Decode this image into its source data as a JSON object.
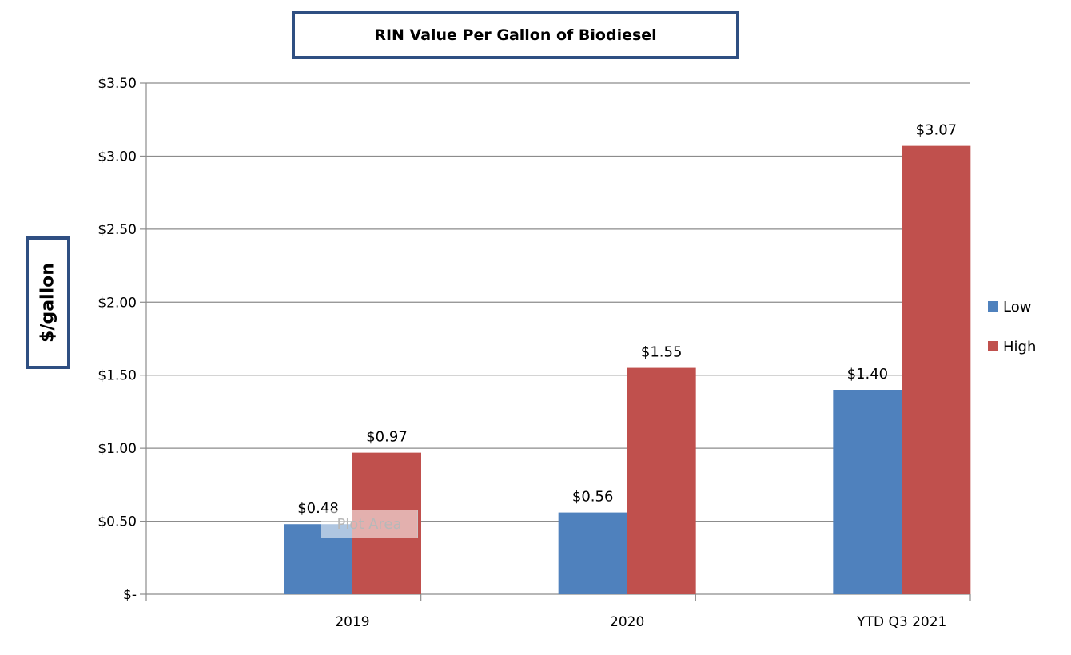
{
  "chart_data": {
    "type": "bar",
    "title": "RIN Value Per Gallon of Biodiesel",
    "ylabel": "$/gallon",
    "xlabel": "",
    "categories": [
      "2019",
      "2020",
      "YTD Q3 2021"
    ],
    "series": [
      {
        "name": "Low",
        "values": [
          0.48,
          0.56,
          1.4
        ],
        "labels": [
          "$0.48",
          "$0.56",
          "$1.40"
        ]
      },
      {
        "name": "High",
        "values": [
          0.97,
          1.55,
          3.07
        ],
        "labels": [
          "$0.97",
          "$1.55",
          "$3.07"
        ]
      }
    ],
    "ylim": [
      0,
      3.5
    ],
    "yticks": [
      0,
      0.5,
      1.0,
      1.5,
      2.0,
      2.5,
      3.0,
      3.5
    ],
    "ytick_labels": [
      "$-",
      "$0.50",
      "$1.00",
      "$1.50",
      "$2.00",
      "$2.50",
      "$3.00",
      "$3.50"
    ],
    "grid": true,
    "legend_position": "right",
    "colors": {
      "Low": "#4F81BD",
      "High": "#C0504D"
    }
  },
  "overlay": {
    "plot_area_tooltip": "Plot Area"
  }
}
